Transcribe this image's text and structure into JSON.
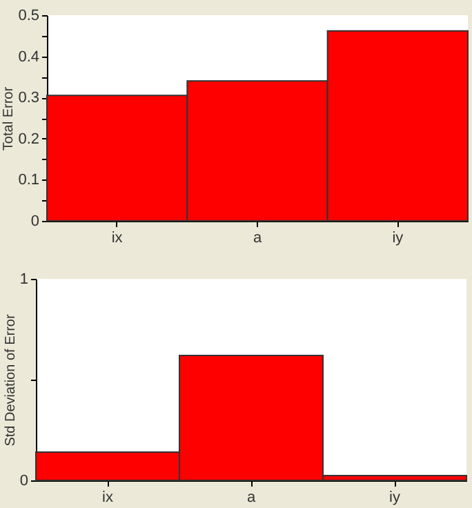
{
  "chart_data": [
    {
      "type": "bar",
      "ylabel": "Total Error",
      "categories": [
        "ix",
        "a",
        "iy"
      ],
      "series": [
        {
          "color": "#ff0000",
          "values": [
            0.305,
            0.34,
            0.462
          ]
        }
      ],
      "ylim": [
        0,
        0.5
      ],
      "yticks": [
        0,
        {
          "value": 0.05,
          "label": null
        },
        0.1,
        {
          "value": 0.15,
          "label": null
        },
        0.2,
        {
          "value": 0.25,
          "label": null
        },
        0.3,
        {
          "value": 0.35,
          "label": null
        },
        0.4,
        {
          "value": 0.45,
          "label": null
        },
        0.5
      ],
      "grid": false
    },
    {
      "type": "bar",
      "ylabel": "Std Deviation of Error",
      "categories": [
        "ix",
        "a",
        "iy"
      ],
      "series": [
        {
          "color": "#ff0000",
          "values": [
            0.14,
            0.62,
            0.024
          ]
        }
      ],
      "ylim": [
        0,
        1
      ],
      "yticks": [
        0,
        {
          "value": 0.5,
          "label": null
        },
        1
      ],
      "grid": false
    }
  ]
}
